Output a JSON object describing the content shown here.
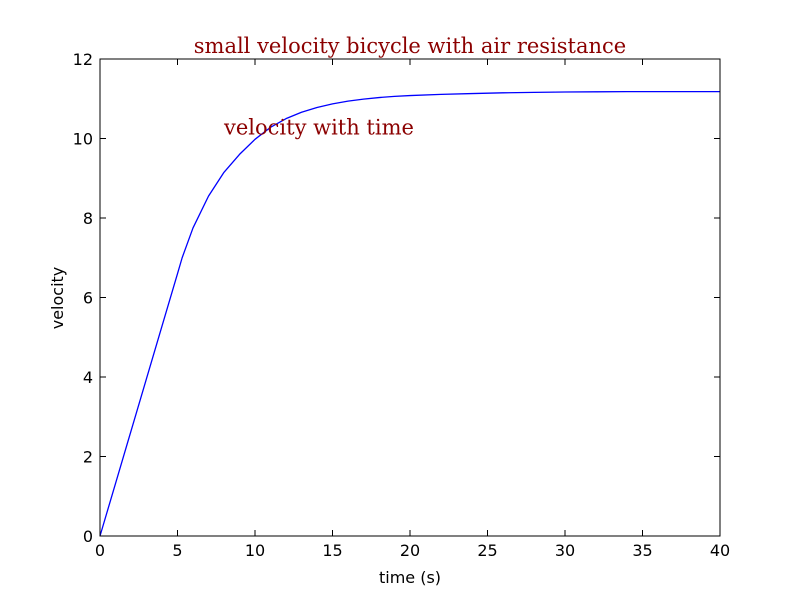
{
  "chart_data": {
    "type": "line",
    "title": "small velocity bicycle with air resistance",
    "xlabel": "time (s)",
    "ylabel": "velocity",
    "xlim": [
      0,
      40
    ],
    "ylim": [
      0,
      12
    ],
    "x_ticks": [
      "0",
      "5",
      "10",
      "15",
      "20",
      "25",
      "30",
      "35",
      "40"
    ],
    "y_ticks": [
      "0",
      "2",
      "4",
      "6",
      "8",
      "10",
      "12"
    ],
    "grid": false,
    "annotations": [
      {
        "text": "velocity with time",
        "x": 8,
        "y": 10.1
      }
    ],
    "colors": {
      "line": "#0000ff",
      "title": "#8b0000",
      "annotation": "#8b0000"
    },
    "series": [
      {
        "x": [
          0,
          1,
          2,
          3,
          4,
          5,
          5.3,
          6,
          7,
          8,
          9,
          10,
          11,
          12,
          13,
          14,
          15,
          16,
          17,
          18,
          19,
          20,
          22,
          24,
          26,
          28,
          30,
          32,
          34,
          36,
          38,
          40
        ],
        "values": [
          0,
          1.32,
          2.64,
          3.96,
          5.28,
          6.6,
          7.0,
          7.75,
          8.55,
          9.15,
          9.6,
          9.98,
          10.28,
          10.5,
          10.66,
          10.78,
          10.87,
          10.94,
          10.99,
          11.03,
          11.06,
          11.08,
          11.11,
          11.13,
          11.15,
          11.16,
          11.17,
          11.175,
          11.18,
          11.18,
          11.18,
          11.18
        ]
      }
    ]
  }
}
